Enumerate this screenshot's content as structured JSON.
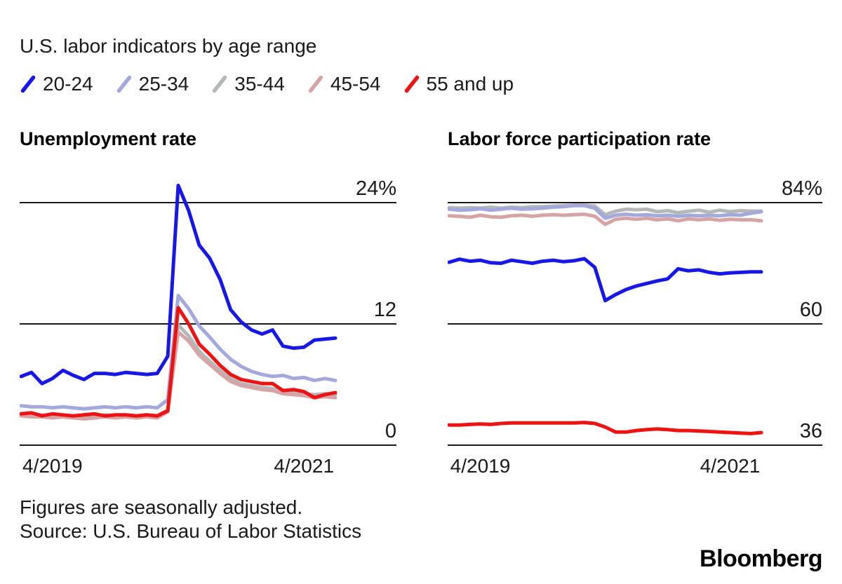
{
  "title": "U.S. labor indicators by age range",
  "legend": [
    {
      "label": "20-24",
      "color": "#1717e8"
    },
    {
      "label": "25-34",
      "color": "#a3a9dc"
    },
    {
      "label": "35-44",
      "color": "#b5b8b9"
    },
    {
      "label": "45-54",
      "color": "#d7a4a6"
    },
    {
      "label": "55 and up",
      "color": "#ee1212"
    }
  ],
  "footnote": {
    "line1": "Figures are seasonally adjusted.",
    "line2": "Source: U.S. Bureau of Labor Statistics"
  },
  "brand": "Bloomberg",
  "styles": {
    "grid_color": "#1a1a1a",
    "text_color": "#1a1a1a",
    "line_width": 5
  },
  "chart_data": [
    {
      "type": "line",
      "title": "Unemployment rate",
      "unit": "%",
      "ylim": [
        0,
        24
      ],
      "gridlines": [
        24,
        12,
        0
      ],
      "gridline_labels": [
        "24%",
        "12",
        "0"
      ],
      "x_ticks": [
        "4/2019",
        "4/2021"
      ],
      "x_tick_indices": [
        3,
        27
      ],
      "x_months": "monthly, 1/2019 through 7/2021",
      "grid": true,
      "legend_position": "top-shared",
      "draw_order": [
        2,
        3,
        1,
        0,
        4
      ],
      "series": [
        {
          "name": "20-24",
          "values": [
            6.8,
            7.2,
            6.1,
            6.6,
            7.4,
            6.9,
            6.5,
            7.1,
            7.1,
            7.0,
            7.2,
            7.1,
            7.0,
            7.1,
            8.8,
            25.7,
            23.2,
            19.8,
            18.5,
            16.4,
            13.4,
            12.2,
            11.4,
            11.0,
            11.4,
            9.8,
            9.6,
            9.7,
            10.4,
            10.5,
            10.6
          ]
        },
        {
          "name": "25-34",
          "values": [
            3.9,
            3.8,
            3.8,
            3.7,
            3.8,
            3.7,
            3.6,
            3.7,
            3.8,
            3.7,
            3.8,
            3.7,
            3.8,
            3.7,
            4.5,
            14.8,
            13.5,
            11.8,
            10.7,
            9.5,
            8.5,
            7.8,
            7.3,
            7.0,
            6.8,
            6.9,
            6.6,
            6.7,
            6.4,
            6.6,
            6.4
          ]
        },
        {
          "name": "35-44",
          "values": [
            3.1,
            3.0,
            3.0,
            2.9,
            3.0,
            2.9,
            2.8,
            2.9,
            3.0,
            2.9,
            3.0,
            2.9,
            3.0,
            2.9,
            3.5,
            11.9,
            10.8,
            9.3,
            8.3,
            7.4,
            6.6,
            6.1,
            5.9,
            5.7,
            5.6,
            5.3,
            5.2,
            5.1,
            5.0,
            5.1,
            5.0
          ]
        },
        {
          "name": "45-54",
          "values": [
            2.9,
            2.8,
            2.8,
            2.7,
            2.8,
            2.7,
            2.6,
            2.7,
            2.8,
            2.7,
            2.8,
            2.7,
            2.8,
            2.7,
            3.3,
            11.2,
            10.3,
            8.9,
            8.0,
            7.1,
            6.3,
            5.9,
            5.7,
            5.5,
            5.4,
            5.1,
            5.0,
            4.9,
            4.7,
            4.8,
            4.7
          ]
        },
        {
          "name": "55 and up",
          "values": [
            3.1,
            3.2,
            2.9,
            3.1,
            3.0,
            2.9,
            3.0,
            3.1,
            2.9,
            3.0,
            3.0,
            2.9,
            3.0,
            2.9,
            3.4,
            13.6,
            12.0,
            10.0,
            9.0,
            7.9,
            7.0,
            6.5,
            6.3,
            6.1,
            6.1,
            5.4,
            5.5,
            5.3,
            4.7,
            5.0,
            5.2
          ]
        }
      ]
    },
    {
      "type": "line",
      "title": "Labor force participation rate",
      "unit": "%",
      "ylim": [
        36,
        84
      ],
      "gridlines": [
        84,
        60,
        36
      ],
      "gridline_labels": [
        "84%",
        "60",
        "36"
      ],
      "x_ticks": [
        "4/2019",
        "4/2021"
      ],
      "x_tick_indices": [
        3,
        27
      ],
      "x_months": "monthly, 1/2019 through 7/2021",
      "grid": true,
      "legend_position": "top-shared",
      "draw_order": [
        2,
        3,
        1,
        0,
        4
      ],
      "series": [
        {
          "name": "20-24",
          "values": [
            72.2,
            72.8,
            72.4,
            72.6,
            72.1,
            72.0,
            72.6,
            72.3,
            72.0,
            72.4,
            72.6,
            72.3,
            72.5,
            72.9,
            71.2,
            64.6,
            65.8,
            66.8,
            67.5,
            68.0,
            68.5,
            68.9,
            70.9,
            70.5,
            70.7,
            70.2,
            69.9,
            70.1,
            70.2,
            70.3,
            70.3
          ]
        },
        {
          "name": "25-34",
          "values": [
            82.7,
            82.5,
            82.6,
            82.8,
            82.5,
            82.7,
            82.9,
            82.7,
            82.8,
            82.9,
            83.1,
            83.2,
            83.4,
            83.4,
            82.9,
            80.9,
            81.5,
            81.7,
            81.5,
            81.6,
            81.4,
            81.5,
            81.3,
            81.5,
            81.4,
            81.5,
            81.4,
            81.6,
            81.5,
            81.9,
            82.2
          ]
        },
        {
          "name": "35-44",
          "values": [
            83.0,
            82.9,
            83.0,
            82.9,
            83.1,
            82.9,
            83.1,
            83.0,
            83.2,
            83.2,
            83.3,
            83.4,
            83.5,
            83.5,
            83.3,
            81.6,
            82.3,
            82.7,
            82.6,
            82.7,
            82.2,
            82.4,
            82.0,
            82.3,
            82.5,
            82.1,
            82.5,
            82.2,
            82.4,
            82.3,
            82.3
          ]
        },
        {
          "name": "45-54",
          "values": [
            81.4,
            81.3,
            81.1,
            81.5,
            81.2,
            81.1,
            81.4,
            81.5,
            81.3,
            81.5,
            81.6,
            81.5,
            81.6,
            81.7,
            81.3,
            79.7,
            80.7,
            80.9,
            80.7,
            80.9,
            80.6,
            80.8,
            80.4,
            80.8,
            80.6,
            80.8,
            80.5,
            80.7,
            80.6,
            80.6,
            80.4
          ]
        },
        {
          "name": "55 and up",
          "values": [
            40.0,
            40.0,
            40.1,
            40.2,
            40.1,
            40.3,
            40.4,
            40.4,
            40.4,
            40.4,
            40.4,
            40.4,
            40.4,
            40.5,
            40.3,
            39.6,
            38.6,
            38.6,
            38.9,
            39.1,
            39.2,
            39.1,
            38.9,
            38.9,
            38.8,
            38.7,
            38.6,
            38.5,
            38.4,
            38.3,
            38.5
          ]
        }
      ]
    }
  ]
}
